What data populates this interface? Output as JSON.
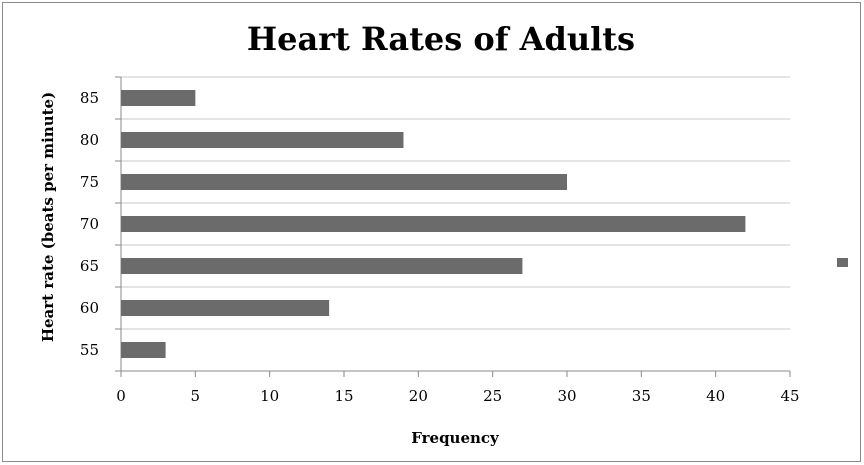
{
  "chart_data": {
    "type": "bar",
    "orientation": "horizontal",
    "title": "Heart Rates of Adults",
    "xlabel": "Frequency",
    "ylabel": "Heart rate (beats per minute)",
    "categories": [
      "55",
      "60",
      "65",
      "70",
      "75",
      "80",
      "85"
    ],
    "values": [
      3,
      14,
      27,
      42,
      30,
      19,
      5
    ],
    "xlim": [
      0,
      45
    ],
    "xticks": [
      "0",
      "5",
      "10",
      "15",
      "20",
      "25",
      "30",
      "35",
      "40",
      "45"
    ],
    "grid": true,
    "legend": "right",
    "bar_color": "#6b6b6b",
    "grid_color": "#c8c8c8",
    "axis_color": "#8a8a8a"
  }
}
